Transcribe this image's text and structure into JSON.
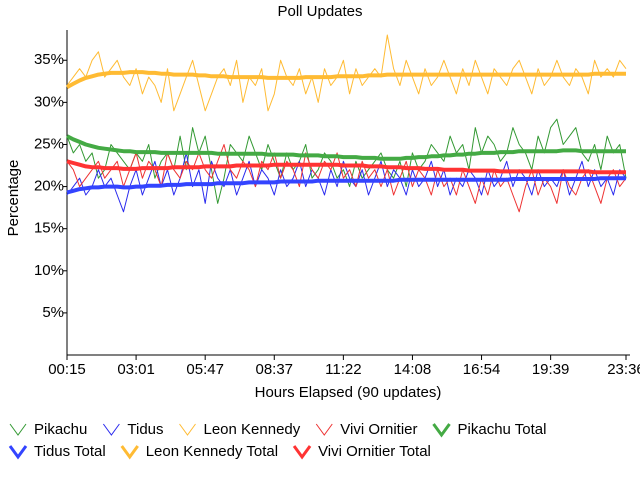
{
  "chart_data": {
    "type": "line",
    "title": "Poll Updates",
    "x_label": "Hours Elapsed (90 updates)",
    "y_label": "Percentage",
    "categories": [
      "00:15",
      null,
      null,
      null,
      null,
      null,
      null,
      null,
      null,
      null,
      null,
      "03:01",
      null,
      null,
      null,
      null,
      null,
      null,
      null,
      null,
      null,
      null,
      "05:47",
      null,
      null,
      null,
      null,
      null,
      null,
      null,
      null,
      null,
      null,
      "08:37",
      null,
      null,
      null,
      null,
      null,
      null,
      null,
      null,
      null,
      null,
      "11:22",
      null,
      null,
      null,
      null,
      null,
      null,
      null,
      null,
      null,
      null,
      "14:08",
      null,
      null,
      null,
      null,
      null,
      null,
      null,
      null,
      null,
      null,
      "16:54",
      null,
      null,
      null,
      null,
      null,
      null,
      null,
      null,
      null,
      null,
      "19:39",
      null,
      null,
      null,
      null,
      null,
      null,
      null,
      null,
      null,
      null,
      null,
      "23:36"
    ],
    "ylim": [
      0,
      38
    ],
    "yticks": [
      {
        "value": 5,
        "label": "5%"
      },
      {
        "value": 10,
        "label": "10%"
      },
      {
        "value": 15,
        "label": "15%"
      },
      {
        "value": 20,
        "label": "20%"
      },
      {
        "value": 25,
        "label": "25%"
      },
      {
        "value": 30,
        "label": "30%"
      },
      {
        "value": 35,
        "label": "35%"
      }
    ],
    "grid": false,
    "series": [
      {
        "name": "Pikachu",
        "color": "#339933",
        "line_width": 1,
        "values": [
          26,
          24,
          25,
          23,
          24,
          21,
          22,
          25,
          24,
          23,
          22,
          24,
          23,
          25,
          21,
          23,
          24,
          22,
          26,
          22,
          27,
          24,
          26,
          22,
          18,
          21,
          25,
          24,
          23,
          26,
          24,
          22,
          25,
          23,
          21,
          24,
          22,
          23,
          25,
          21,
          22,
          24,
          23,
          21,
          22,
          20,
          23,
          21,
          22,
          23,
          24,
          22,
          21,
          23,
          20,
          24,
          22,
          23,
          25,
          24,
          23,
          26,
          24,
          25,
          22,
          27,
          24,
          26,
          25,
          23,
          24,
          27,
          25,
          24,
          22,
          26,
          24,
          27,
          28,
          25,
          26,
          27,
          24,
          23,
          25,
          22,
          26,
          24,
          25,
          21
        ]
      },
      {
        "name": "Tidus",
        "color": "#2a2aee",
        "line_width": 1,
        "values": [
          19,
          20,
          21,
          19,
          20,
          22,
          20,
          21,
          19,
          17,
          20,
          22,
          19,
          21,
          23,
          20,
          22,
          19,
          21,
          24,
          20,
          22,
          18,
          23,
          21,
          20,
          22,
          19,
          21,
          23,
          20,
          22,
          21,
          19,
          22,
          20,
          21,
          23,
          20,
          22,
          21,
          19,
          22,
          20,
          23,
          21,
          20,
          22,
          19,
          21,
          23,
          20,
          22,
          21,
          19,
          22,
          20,
          21,
          23,
          20,
          22,
          19,
          21,
          20,
          22,
          21,
          19,
          22,
          20,
          21,
          23,
          20,
          22,
          21,
          19,
          22,
          20,
          21,
          20,
          22,
          19,
          21,
          23,
          20,
          22,
          20,
          21,
          19,
          22,
          21
        ]
      },
      {
        "name": "Leon Kennedy",
        "color": "#ffbb33",
        "line_width": 1,
        "values": [
          32,
          33,
          34,
          33,
          35,
          36,
          33,
          34,
          35,
          33,
          32,
          34,
          31,
          33,
          32,
          30,
          34,
          29,
          31,
          33,
          35,
          32,
          29,
          31,
          33,
          34,
          32,
          35,
          30,
          33,
          32,
          34,
          29,
          31,
          35,
          33,
          32,
          34,
          31,
          33,
          30,
          34,
          32,
          33,
          35,
          31,
          34,
          32,
          33,
          34,
          33,
          38,
          34,
          32,
          35,
          33,
          31,
          34,
          32,
          33,
          35,
          33,
          31,
          34,
          32,
          35,
          33,
          31,
          34,
          33,
          32,
          34,
          35,
          33,
          31,
          34,
          32,
          33,
          35,
          33,
          32,
          34,
          33,
          31,
          35,
          33,
          34,
          33,
          35,
          34
        ]
      },
      {
        "name": "Vivi Ornitier",
        "color": "#ee3333",
        "line_width": 1,
        "values": [
          23,
          22,
          20,
          21,
          22,
          23,
          21,
          22,
          23,
          20,
          22,
          24,
          21,
          23,
          22,
          20,
          24,
          22,
          21,
          23,
          22,
          24,
          22,
          21,
          23,
          25,
          22,
          21,
          23,
          22,
          20,
          23,
          22,
          24,
          21,
          23,
          22,
          20,
          24,
          22,
          21,
          23,
          22,
          24,
          21,
          22,
          20,
          23,
          21,
          22,
          20,
          22,
          19,
          21,
          23,
          20,
          22,
          21,
          19,
          22,
          20,
          21,
          19,
          22,
          20,
          18,
          21,
          19,
          22,
          20,
          21,
          19,
          17,
          20,
          22,
          19,
          21,
          20,
          18,
          22,
          20,
          19,
          21,
          22,
          20,
          18,
          21,
          22,
          20,
          21
        ]
      },
      {
        "name": "Pikachu Total",
        "color": "#44aa44",
        "line_width": 4,
        "values": [
          26,
          25.6,
          25.3,
          25,
          24.8,
          24.6,
          24.5,
          24.4,
          24.3,
          24.2,
          24.2,
          24.1,
          24.1,
          24.1,
          24.1,
          24.0,
          24.0,
          24.0,
          24.0,
          24.0,
          24.0,
          24.0,
          24.0,
          24.0,
          23.9,
          23.9,
          23.9,
          23.9,
          23.9,
          23.9,
          23.9,
          23.9,
          23.8,
          23.8,
          23.8,
          23.8,
          23.8,
          23.7,
          23.7,
          23.7,
          23.7,
          23.6,
          23.6,
          23.6,
          23.5,
          23.5,
          23.5,
          23.4,
          23.4,
          23.4,
          23.3,
          23.3,
          23.3,
          23.3,
          23.4,
          23.4,
          23.5,
          23.5,
          23.6,
          23.6,
          23.7,
          23.7,
          23.8,
          23.8,
          23.9,
          23.9,
          24.0,
          24.0,
          24.0,
          24.1,
          24.1,
          24.1,
          24.2,
          24.2,
          24.2,
          24.2,
          24.2,
          24.2,
          24.2,
          24.3,
          24.3,
          24.3,
          24.2,
          24.2,
          24.2,
          24.2,
          24.2,
          24.2,
          24.2,
          24.2
        ]
      },
      {
        "name": "Tidus Total",
        "color": "#3344ff",
        "line_width": 4,
        "values": [
          19.3,
          19.5,
          19.7,
          19.8,
          19.9,
          19.9,
          20.0,
          20.0,
          20.0,
          19.9,
          19.9,
          20.0,
          20.0,
          20.1,
          20.1,
          20.1,
          20.2,
          20.2,
          20.2,
          20.3,
          20.3,
          20.3,
          20.3,
          20.3,
          20.4,
          20.4,
          20.4,
          20.4,
          20.4,
          20.5,
          20.5,
          20.5,
          20.5,
          20.5,
          20.6,
          20.6,
          20.6,
          20.6,
          20.6,
          20.6,
          20.7,
          20.7,
          20.7,
          20.7,
          20.7,
          20.7,
          20.7,
          20.7,
          20.7,
          20.7,
          20.7,
          20.7,
          20.7,
          20.8,
          20.8,
          20.8,
          20.8,
          20.8,
          20.8,
          20.8,
          20.8,
          20.8,
          20.8,
          20.8,
          20.8,
          20.8,
          20.8,
          20.8,
          20.8,
          20.8,
          20.8,
          20.9,
          20.9,
          20.9,
          20.9,
          20.9,
          20.9,
          20.9,
          20.9,
          20.9,
          20.9,
          20.9,
          20.9,
          20.9,
          20.9,
          21.0,
          21.0,
          21.0,
          21.0,
          21.0
        ]
      },
      {
        "name": "Leon Kennedy Total",
        "color": "#ffbb33",
        "line_width": 4,
        "values": [
          31.8,
          32.2,
          32.6,
          32.9,
          33.1,
          33.3,
          33.4,
          33.5,
          33.5,
          33.5,
          33.6,
          33.6,
          33.6,
          33.5,
          33.5,
          33.4,
          33.4,
          33.3,
          33.3,
          33.3,
          33.3,
          33.2,
          33.2,
          33.1,
          33.1,
          33.1,
          33.0,
          33.0,
          33.0,
          33.0,
          33.0,
          33.0,
          32.9,
          32.9,
          32.9,
          32.9,
          32.9,
          32.9,
          33.0,
          33.0,
          33.0,
          33.0,
          33.0,
          33.1,
          33.1,
          33.1,
          33.1,
          33.1,
          33.2,
          33.2,
          33.2,
          33.3,
          33.3,
          33.3,
          33.3,
          33.3,
          33.3,
          33.3,
          33.3,
          33.3,
          33.3,
          33.3,
          33.3,
          33.3,
          33.3,
          33.3,
          33.3,
          33.3,
          33.3,
          33.3,
          33.3,
          33.3,
          33.3,
          33.3,
          33.3,
          33.3,
          33.3,
          33.3,
          33.3,
          33.3,
          33.3,
          33.3,
          33.3,
          33.3,
          33.4,
          33.4,
          33.4,
          33.4,
          33.4,
          33.4
        ]
      },
      {
        "name": "Vivi Ornitier Total",
        "color": "#ff3333",
        "line_width": 4,
        "values": [
          23,
          22.8,
          22.6,
          22.4,
          22.3,
          22.3,
          22.2,
          22.2,
          22.2,
          22.1,
          22.1,
          22.1,
          22.2,
          22.2,
          22.2,
          22.2,
          22.2,
          22.3,
          22.3,
          22.3,
          22.3,
          22.3,
          22.4,
          22.4,
          22.4,
          22.4,
          22.4,
          22.5,
          22.5,
          22.5,
          22.5,
          22.5,
          22.5,
          22.6,
          22.6,
          22.6,
          22.6,
          22.6,
          22.6,
          22.6,
          22.6,
          22.6,
          22.6,
          22.6,
          22.5,
          22.5,
          22.5,
          22.5,
          22.4,
          22.4,
          22.4,
          22.3,
          22.3,
          22.3,
          22.2,
          22.2,
          22.2,
          22.1,
          22.1,
          22.1,
          22.0,
          22.0,
          22.0,
          22.0,
          21.9,
          21.9,
          21.9,
          21.9,
          21.9,
          21.8,
          21.8,
          21.8,
          21.8,
          21.8,
          21.8,
          21.8,
          21.8,
          21.8,
          21.8,
          21.8,
          21.8,
          21.8,
          21.8,
          21.8,
          21.7,
          21.7,
          21.7,
          21.7,
          21.7,
          21.7
        ]
      }
    ]
  }
}
